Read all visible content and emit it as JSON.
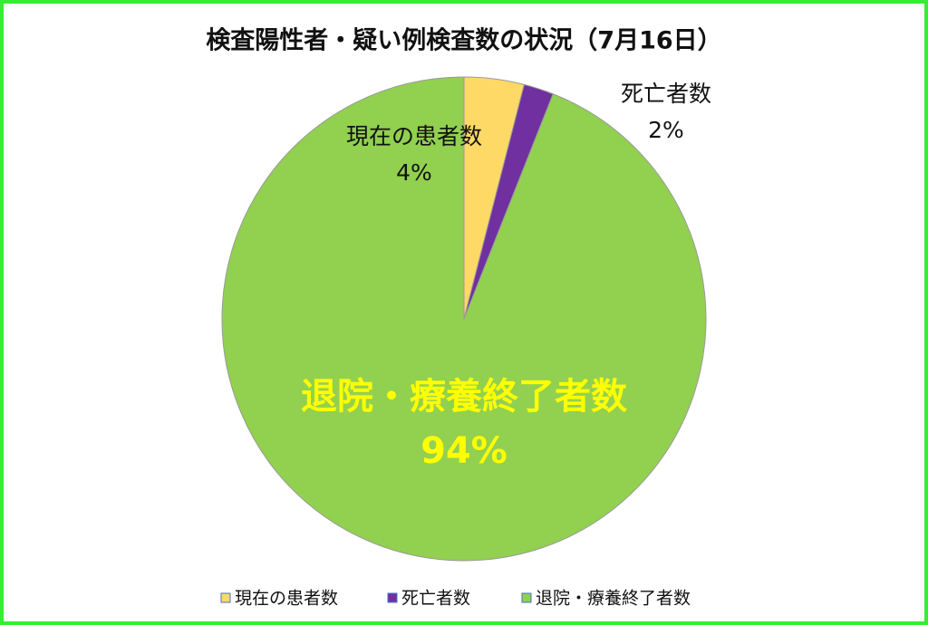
{
  "chart_data": {
    "type": "pie",
    "title": "検査陽性者・疑い例検査数の状況（7月16日）",
    "categories": [
      "現在の患者数",
      "死亡者数",
      "退院・療養終了者数"
    ],
    "values": [
      4,
      2,
      94
    ],
    "value_labels": [
      "4%",
      "2%",
      "94%"
    ],
    "colors": [
      "#ffd966",
      "#7030a0",
      "#92d050"
    ],
    "legend": "bottom"
  }
}
